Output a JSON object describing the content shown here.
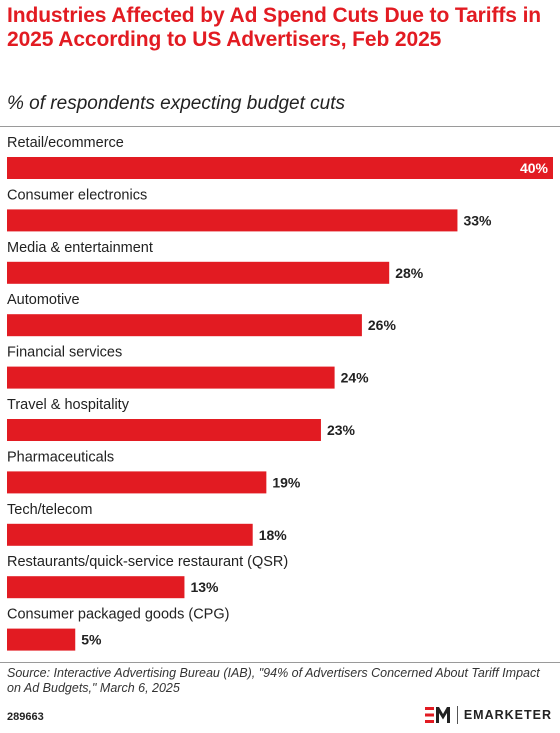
{
  "header": {
    "title": "Industries Affected by Ad Spend Cuts Due to Tariffs in 2025 According to US Advertisers, Feb 2025",
    "subtitle": "% of respondents expecting budget cuts"
  },
  "chart_data": {
    "type": "bar",
    "orientation": "horizontal",
    "title": "Industries Affected by Ad Spend Cuts Due to Tariffs in 2025 According to US Advertisers, Feb 2025",
    "subtitle": "% of respondents expecting budget cuts",
    "categories": [
      "Retail/ecommerce",
      "Consumer electronics",
      "Media & entertainment",
      "Automotive",
      "Financial services",
      "Travel & hospitality",
      "Pharmaceuticals",
      "Tech/telecom",
      "Restaurants/quick-service restaurant (QSR)",
      "Consumer packaged goods (CPG)"
    ],
    "values": [
      40,
      33,
      28,
      26,
      24,
      23,
      19,
      18,
      13,
      5
    ],
    "value_labels": [
      "40%",
      "33%",
      "28%",
      "26%",
      "24%",
      "23%",
      "19%",
      "18%",
      "13%",
      "5%"
    ],
    "xlim": [
      0,
      40
    ],
    "grid": false,
    "legend": "none",
    "bar_color": "#e21b22"
  },
  "footer": {
    "source": "Source: Interactive Advertising Bureau (IAB), \"94% of Advertisers Concerned About Tariff Impact on Ad Budgets,\" March 6, 2025",
    "chart_id": "289663",
    "brand_name": "EMARKETER",
    "brand_icon": "em-logo-icon"
  },
  "colors": {
    "accent": "#e21b22",
    "text": "#222222"
  }
}
